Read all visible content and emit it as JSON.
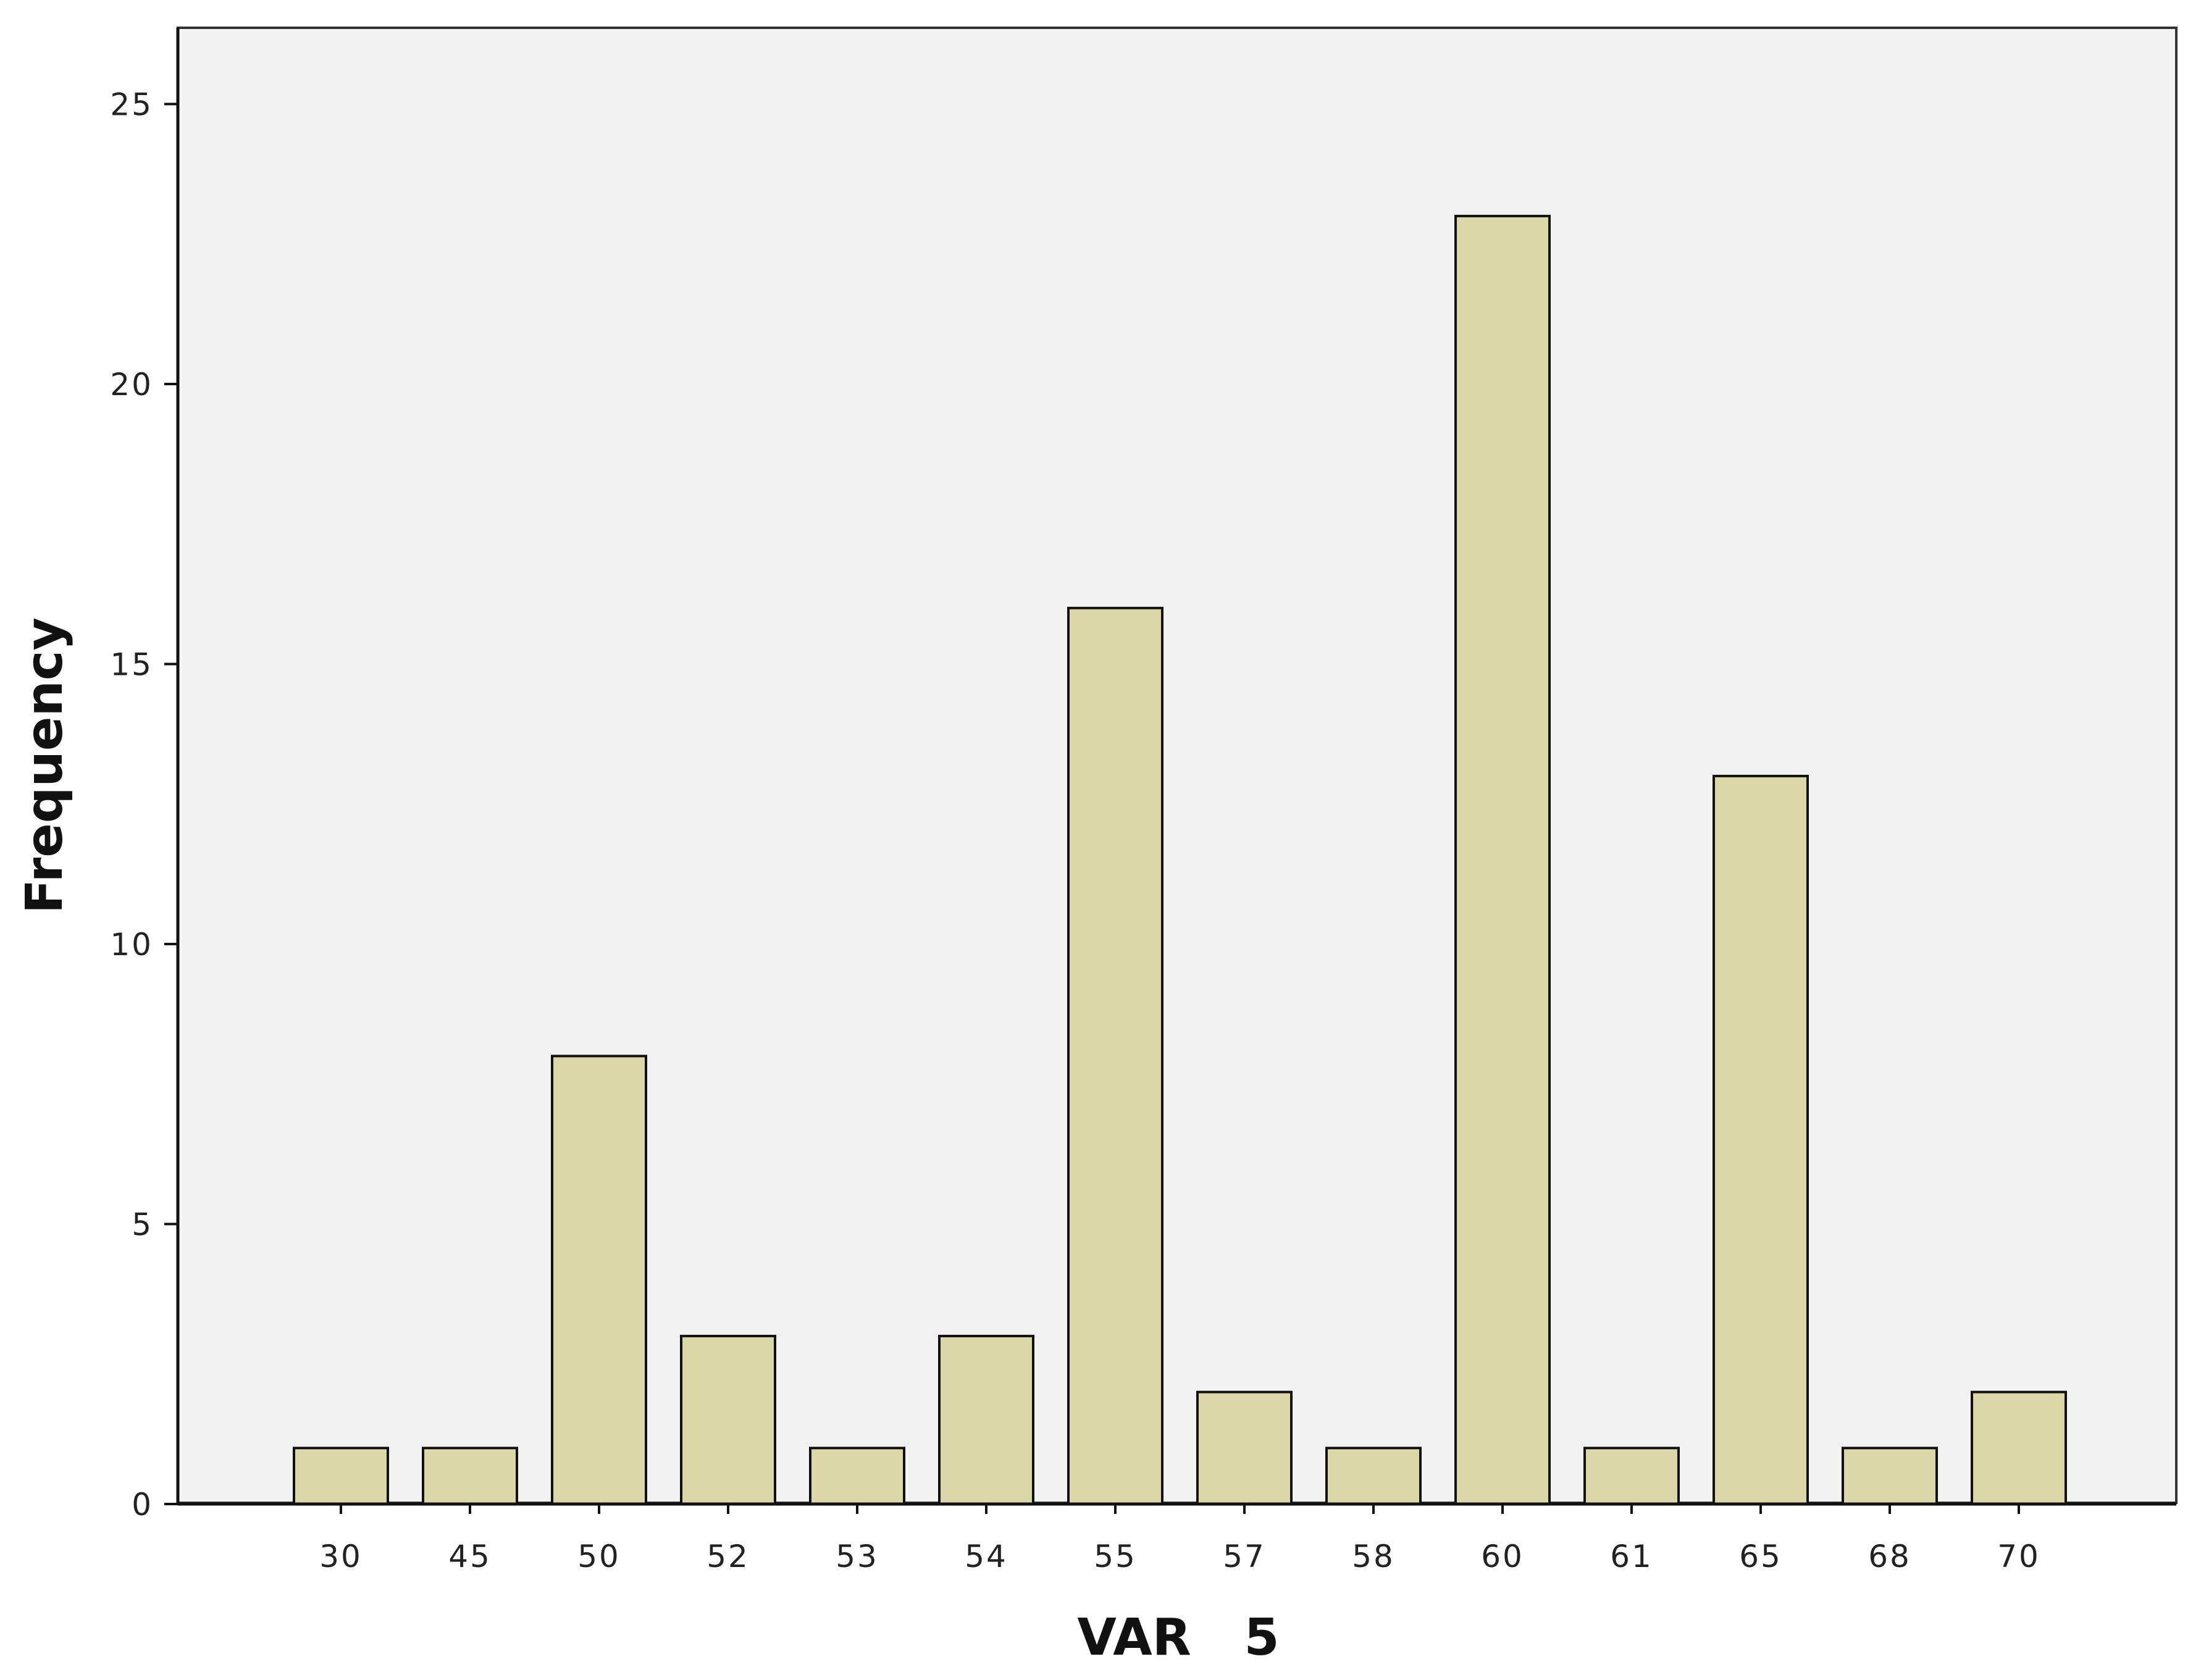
{
  "chart_data": {
    "type": "bar",
    "categories": [
      "30",
      "45",
      "50",
      "52",
      "53",
      "54",
      "55",
      "57",
      "58",
      "60",
      "61",
      "65",
      "68",
      "70"
    ],
    "values": [
      1,
      1,
      8,
      3,
      1,
      3,
      16,
      2,
      1,
      23,
      1,
      13,
      1,
      2
    ],
    "title": "",
    "xlabel": "VAR   5",
    "ylabel": "Frequency",
    "ylim": [
      0,
      26.3
    ],
    "yticks": [
      0,
      5,
      10,
      15,
      20,
      25
    ],
    "grid": false,
    "legend": "none",
    "colors": {
      "bar_fill": "#dcd7a9",
      "bar_stroke": "#111111",
      "plot_background": "#f2f2f2",
      "axis": "#111111"
    }
  }
}
